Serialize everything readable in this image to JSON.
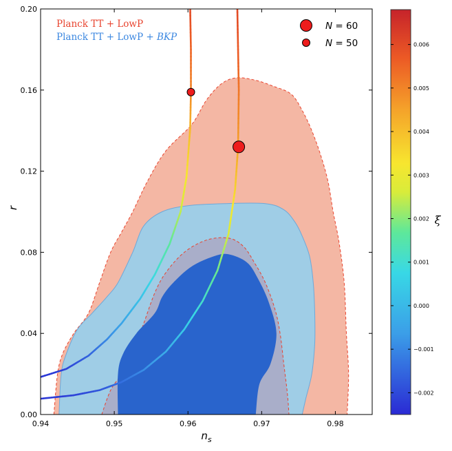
{
  "chart_data": {
    "type": "scatter",
    "xlabel": "n_s",
    "ylabel": "r",
    "xlim": [
      0.94,
      0.985
    ],
    "ylim": [
      0.0,
      0.2
    ],
    "x_ticks": [
      "0.94",
      "0.95",
      "0.96",
      "0.97",
      "0.98"
    ],
    "y_ticks": [
      "0.00",
      "0.04",
      "0.08",
      "0.12",
      "0.16",
      "0.20"
    ],
    "grid": false,
    "legend_placement": "top-right",
    "datasets": [
      {
        "name": "Planck TT + LowP",
        "color": "#e8432e",
        "contour_68_fill": "#a9aec9",
        "contour_95_fill": "#f4b7a4",
        "contour_95": [
          [
            0.9418,
            0.0
          ],
          [
            0.9423,
            0.02
          ],
          [
            0.943,
            0.03
          ],
          [
            0.9445,
            0.04
          ],
          [
            0.9465,
            0.05
          ],
          [
            0.948,
            0.065
          ],
          [
            0.9495,
            0.08
          ],
          [
            0.951,
            0.09
          ],
          [
            0.9525,
            0.1
          ],
          [
            0.9545,
            0.115
          ],
          [
            0.957,
            0.13
          ],
          [
            0.9605,
            0.143
          ],
          [
            0.9625,
            0.155
          ],
          [
            0.9645,
            0.163
          ],
          [
            0.9665,
            0.166
          ],
          [
            0.969,
            0.165
          ],
          [
            0.9715,
            0.162
          ],
          [
            0.974,
            0.158
          ],
          [
            0.9755,
            0.15
          ],
          [
            0.9768,
            0.14
          ],
          [
            0.978,
            0.128
          ],
          [
            0.979,
            0.115
          ],
          [
            0.9797,
            0.1
          ],
          [
            0.9805,
            0.085
          ],
          [
            0.9812,
            0.065
          ],
          [
            0.9815,
            0.04
          ],
          [
            0.9818,
            0.02
          ],
          [
            0.9816,
            0.0
          ]
        ],
        "contour_68": [
          [
            0.9483,
            0.0
          ],
          [
            0.9495,
            0.012
          ],
          [
            0.951,
            0.02
          ],
          [
            0.9525,
            0.03
          ],
          [
            0.954,
            0.045
          ],
          [
            0.9555,
            0.06
          ],
          [
            0.957,
            0.07
          ],
          [
            0.9595,
            0.08
          ],
          [
            0.9625,
            0.086
          ],
          [
            0.9655,
            0.087
          ],
          [
            0.9675,
            0.083
          ],
          [
            0.969,
            0.075
          ],
          [
            0.9705,
            0.065
          ],
          [
            0.9718,
            0.052
          ],
          [
            0.9725,
            0.04
          ],
          [
            0.973,
            0.025
          ],
          [
            0.9735,
            0.01
          ],
          [
            0.9737,
            0.0
          ]
        ]
      },
      {
        "name": "Planck TT + LowP + BKP",
        "color": "#3b87e0",
        "contour_68_fill": "#2964cc",
        "contour_95_fill": "#9fcde6",
        "contour_95": [
          [
            0.9425,
            0.0
          ],
          [
            0.9428,
            0.02
          ],
          [
            0.9435,
            0.03
          ],
          [
            0.945,
            0.042
          ],
          [
            0.947,
            0.05
          ],
          [
            0.949,
            0.058
          ],
          [
            0.9505,
            0.065
          ],
          [
            0.9525,
            0.08
          ],
          [
            0.954,
            0.093
          ],
          [
            0.9565,
            0.1
          ],
          [
            0.96,
            0.103
          ],
          [
            0.965,
            0.104
          ],
          [
            0.9705,
            0.104
          ],
          [
            0.973,
            0.101
          ],
          [
            0.9745,
            0.095
          ],
          [
            0.9755,
            0.088
          ],
          [
            0.9765,
            0.078
          ],
          [
            0.977,
            0.065
          ],
          [
            0.9772,
            0.05
          ],
          [
            0.9772,
            0.035
          ],
          [
            0.9768,
            0.02
          ],
          [
            0.976,
            0.008
          ],
          [
            0.9755,
            0.0
          ]
        ],
        "contour_68": [
          [
            0.9505,
            0.0
          ],
          [
            0.9505,
            0.02
          ],
          [
            0.9512,
            0.03
          ],
          [
            0.953,
            0.04
          ],
          [
            0.9555,
            0.05
          ],
          [
            0.9565,
            0.058
          ],
          [
            0.958,
            0.065
          ],
          [
            0.9605,
            0.073
          ],
          [
            0.9635,
            0.078
          ],
          [
            0.9655,
            0.079
          ],
          [
            0.968,
            0.075
          ],
          [
            0.9695,
            0.067
          ],
          [
            0.971,
            0.055
          ],
          [
            0.972,
            0.04
          ],
          [
            0.9712,
            0.025
          ],
          [
            0.9697,
            0.015
          ],
          [
            0.9692,
            0.0
          ]
        ]
      }
    ],
    "curves": [
      {
        "label": "N = 60",
        "points": [
          [
            0.94,
            0.0078
          ],
          [
            0.9445,
            0.0095
          ],
          [
            0.948,
            0.012
          ],
          [
            0.951,
            0.016
          ],
          [
            0.954,
            0.022
          ],
          [
            0.957,
            0.031
          ],
          [
            0.9595,
            0.042
          ],
          [
            0.962,
            0.056
          ],
          [
            0.964,
            0.071
          ],
          [
            0.9655,
            0.089
          ],
          [
            0.9664,
            0.111
          ],
          [
            0.9668,
            0.132
          ],
          [
            0.9669,
            0.16
          ],
          [
            0.9668,
            0.18
          ],
          [
            0.9667,
            0.2
          ]
        ],
        "xi": [
          -0.0023,
          -0.0021,
          -0.0018,
          -0.0014,
          -0.0009,
          -0.0003,
          0.0004,
          0.0011,
          0.0018,
          0.0026,
          0.0036,
          0.0045,
          0.0052,
          0.0057,
          0.006
        ]
      },
      {
        "label": "N = 50",
        "points": [
          [
            0.94,
            0.0185
          ],
          [
            0.9435,
            0.0225
          ],
          [
            0.9465,
            0.029
          ],
          [
            0.949,
            0.037
          ],
          [
            0.951,
            0.045
          ],
          [
            0.9535,
            0.057
          ],
          [
            0.9555,
            0.069
          ],
          [
            0.9575,
            0.084
          ],
          [
            0.959,
            0.1
          ],
          [
            0.9598,
            0.117
          ],
          [
            0.9603,
            0.141
          ],
          [
            0.9604,
            0.159
          ],
          [
            0.9604,
            0.18
          ],
          [
            0.9603,
            0.2
          ]
        ],
        "xi": [
          -0.0023,
          -0.0021,
          -0.0016,
          -0.001,
          -0.0005,
          0.0002,
          0.0009,
          0.0016,
          0.0024,
          0.0032,
          0.0041,
          0.0049,
          0.0055,
          0.006
        ]
      }
    ],
    "markers": [
      {
        "label": "N = 60",
        "x": 0.9669,
        "y": 0.132,
        "size": "large"
      },
      {
        "label": "N = 50",
        "x": 0.9604,
        "y": 0.159,
        "size": "small"
      }
    ],
    "colorbar": {
      "label": "ξ",
      "range": [
        -0.0025,
        0.0068
      ],
      "ticks": [
        "0.006",
        "0.005",
        "0.004",
        "0.003",
        "0.002",
        "0.001",
        "0.000",
        "−0.001",
        "−0.002"
      ],
      "tick_values": [
        0.006,
        0.005,
        0.004,
        0.003,
        0.002,
        0.001,
        0.0,
        -0.001,
        -0.002
      ]
    },
    "legend": {
      "left": [
        {
          "text": "Planck TT + LowP",
          "color": "#e8432e"
        },
        {
          "text": "Planck TT + LowP + ",
          "italic_suffix": "BKP",
          "color": "#3b87e0"
        }
      ],
      "right": [
        {
          "text": "N = 60",
          "marker": "large"
        },
        {
          "text": "N = 50",
          "marker": "small"
        }
      ]
    }
  }
}
